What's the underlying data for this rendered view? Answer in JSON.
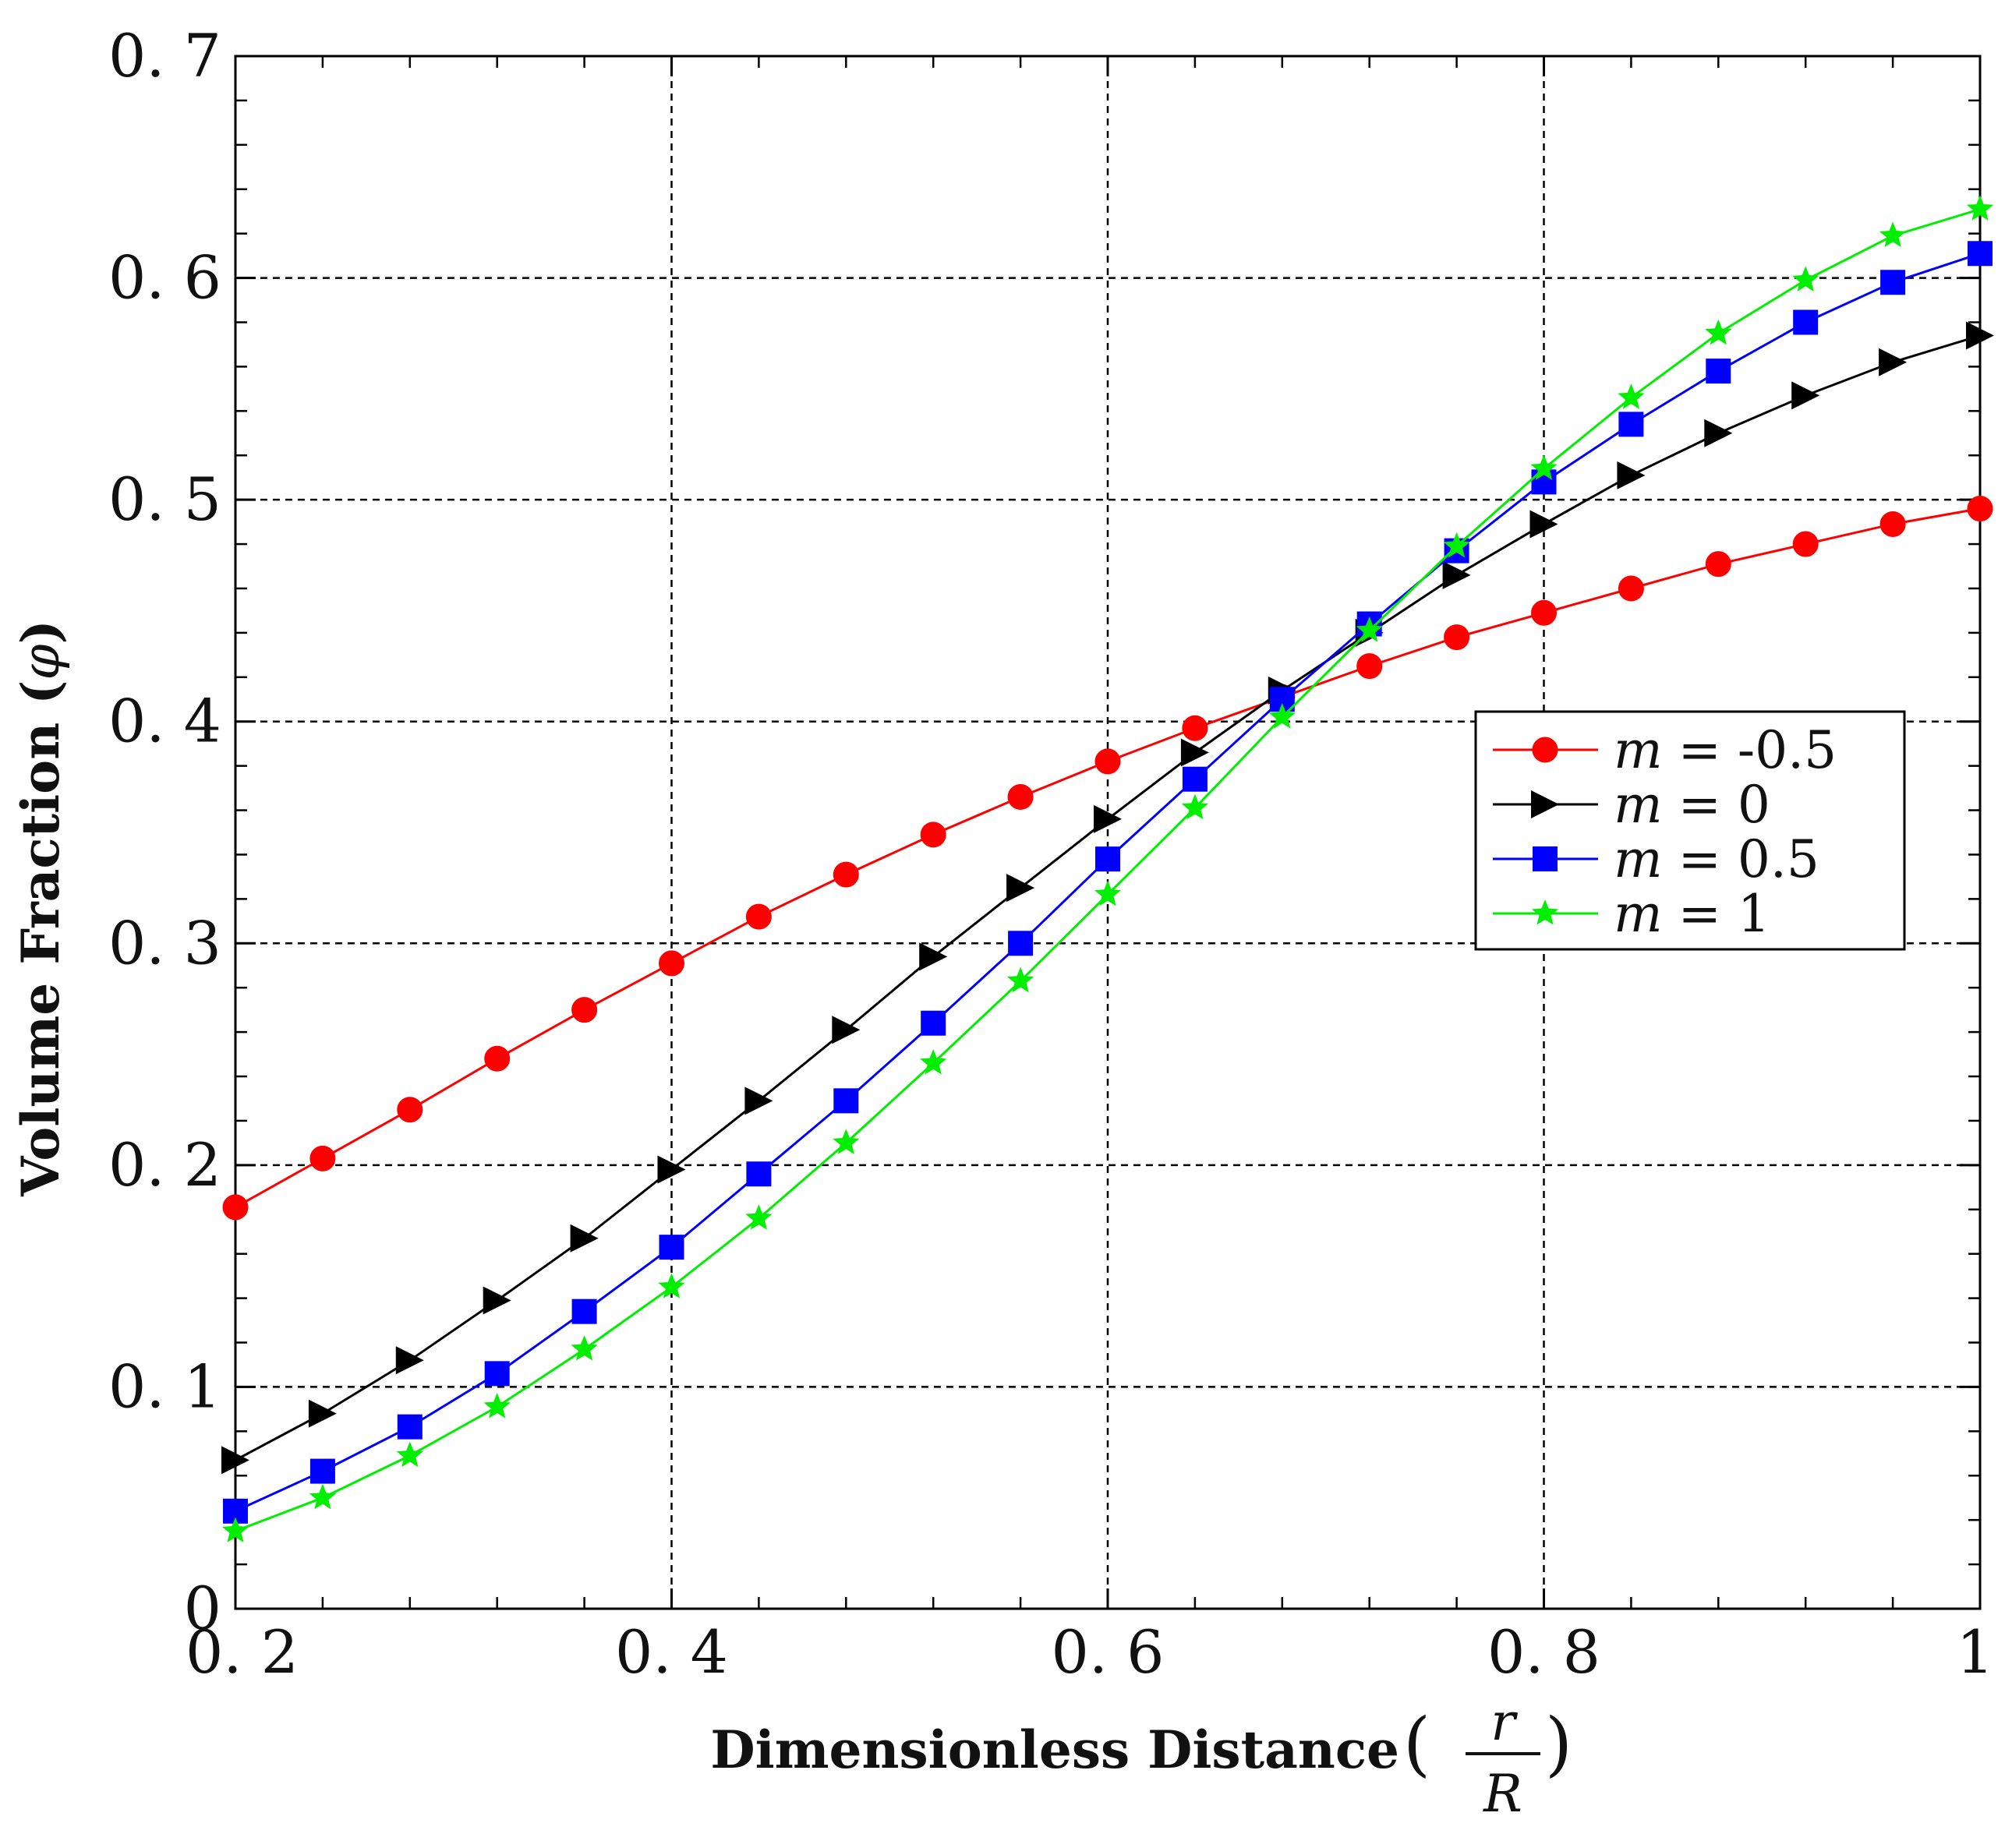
{
  "chart_data": {
    "type": "line",
    "title": "",
    "xlabel": "Dimensionless Distance",
    "xlabel_symbol_num": "r",
    "xlabel_symbol_den": "R",
    "ylabel": "Volume Fraction",
    "ylabel_symbol": "φ",
    "xlim": [
      0.2,
      1.0
    ],
    "ylim": [
      0,
      0.7
    ],
    "x_tick_labels": [
      "0. 2",
      "0. 4",
      "0. 6",
      "0. 8",
      "1"
    ],
    "y_tick_labels": [
      "0",
      "0. 1",
      "0. 2",
      "0. 3",
      "0. 4",
      "0. 5",
      "0. 6",
      "0. 7"
    ],
    "grid": true,
    "legend_position": "right-middle",
    "x": [
      0.2,
      0.24,
      0.28,
      0.32,
      0.36,
      0.4,
      0.44,
      0.48,
      0.52,
      0.56,
      0.6,
      0.64,
      0.68,
      0.72,
      0.76,
      0.8,
      0.84,
      0.88,
      0.92,
      0.96,
      1.0
    ],
    "series": [
      {
        "name": "m = -0.5",
        "label_var": "m",
        "label_value": "= -0.5",
        "color": "#ff0000",
        "marker": "circle",
        "values": [
          0.181,
          0.203,
          0.225,
          0.248,
          0.27,
          0.291,
          0.312,
          0.331,
          0.349,
          0.366,
          0.382,
          0.397,
          0.411,
          0.425,
          0.438,
          0.449,
          0.46,
          0.471,
          0.48,
          0.489,
          0.496
        ]
      },
      {
        "name": "m = 0",
        "label_var": "m",
        "label_value": "= 0",
        "color": "#000000",
        "marker": "triangle-right",
        "values": [
          0.067,
          0.088,
          0.112,
          0.139,
          0.167,
          0.198,
          0.229,
          0.261,
          0.294,
          0.325,
          0.356,
          0.386,
          0.414,
          0.44,
          0.466,
          0.489,
          0.511,
          0.53,
          0.547,
          0.562,
          0.574
        ]
      },
      {
        "name": "m = 0.5",
        "label_var": "m",
        "label_value": "= 0.5",
        "color": "#0000ff",
        "marker": "square",
        "values": [
          0.044,
          0.062,
          0.082,
          0.106,
          0.134,
          0.163,
          0.196,
          0.229,
          0.264,
          0.3,
          0.338,
          0.374,
          0.41,
          0.444,
          0.477,
          0.508,
          0.534,
          0.558,
          0.58,
          0.598,
          0.611
        ]
      },
      {
        "name": "m = 1",
        "label_var": "m",
        "label_value": "= 1",
        "color": "#00ee00",
        "marker": "star",
        "values": [
          0.035,
          0.05,
          0.069,
          0.091,
          0.117,
          0.145,
          0.176,
          0.21,
          0.246,
          0.283,
          0.322,
          0.361,
          0.402,
          0.441,
          0.479,
          0.514,
          0.546,
          0.575,
          0.599,
          0.619,
          0.631
        ]
      }
    ]
  }
}
